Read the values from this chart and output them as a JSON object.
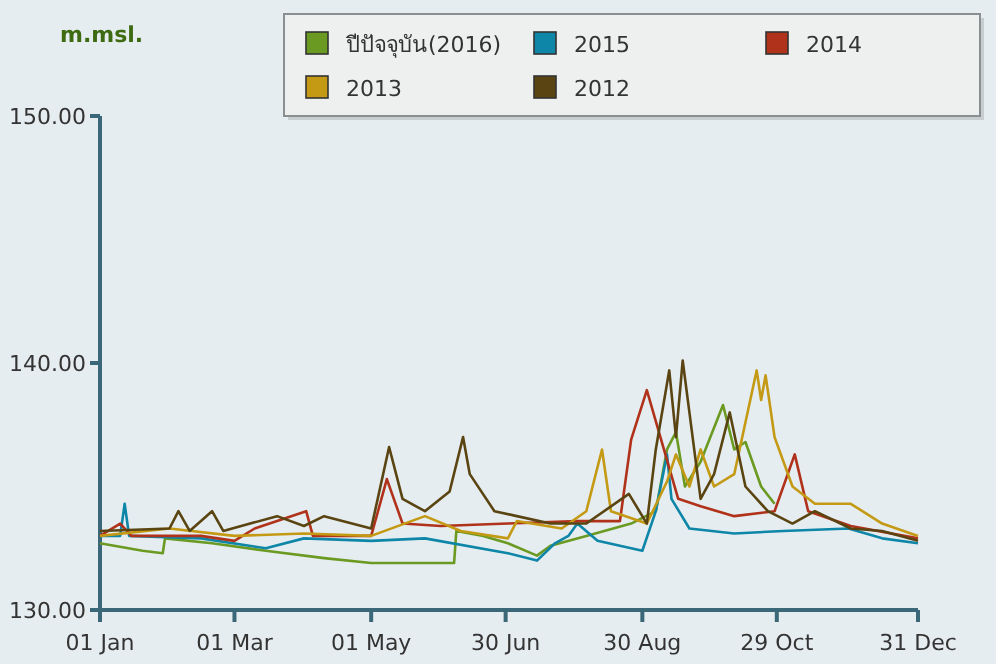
{
  "chart_data": {
    "type": "line",
    "ylabel": "m.msl.",
    "legend": "top right",
    "marker": "none",
    "line_style": "solid",
    "xlim": [
      "--01-01",
      "--12-31"
    ],
    "ylim": [
      130,
      150
    ],
    "xticks": [
      {
        "value": "--01-01",
        "label": "01 Jan"
      },
      {
        "value": "--03-01",
        "label": "01 Mar"
      },
      {
        "value": "--05-01",
        "label": "01 May"
      },
      {
        "value": "--06-30",
        "label": "30 Jun"
      },
      {
        "value": "--08-30",
        "label": "30 Aug"
      },
      {
        "value": "--10-29",
        "label": "29 Oct"
      },
      {
        "value": "--12-31",
        "label": "31 Dec"
      }
    ],
    "yticks": [
      {
        "value": 130,
        "label": "130.00"
      },
      {
        "value": 140,
        "label": "140.00"
      },
      {
        "value": 150,
        "label": "150.00"
      }
    ],
    "series": [
      {
        "name": "ปีปัจจุบัน(2016)",
        "color": "#6b9a22",
        "x": [
          "--01-01",
          "--01-20",
          "--01-29",
          "--01-30",
          "--02-20",
          "--03-15",
          "--04-10",
          "--05-01",
          "--05-20",
          "--06-07",
          "--06-08",
          "--06-20",
          "--07-01",
          "--07-14",
          "--07-20",
          "--08-05",
          "--08-25",
          "--09-05",
          "--09-10",
          "--09-14",
          "--09-18",
          "--09-25",
          "--10-05",
          "--10-10",
          "--10-15",
          "--10-22",
          "--10-28"
        ],
        "values": [
          132.7,
          132.4,
          132.3,
          132.9,
          132.7,
          132.4,
          132.1,
          131.9,
          131.9,
          131.9,
          133.2,
          133.0,
          132.7,
          132.2,
          132.6,
          133.0,
          133.5,
          134.0,
          136.5,
          137.2,
          135.0,
          136.0,
          138.3,
          136.5,
          136.8,
          135.0,
          134.3
        ]
      },
      {
        "name": "2015",
        "color": "#0e86a8",
        "x": [
          "--01-01",
          "--01-10",
          "--01-12",
          "--01-14",
          "--02-15",
          "--03-15",
          "--04-01",
          "--05-01",
          "--05-25",
          "--07-01",
          "--07-14",
          "--07-22",
          "--07-28",
          "--08-01",
          "--08-10",
          "--08-30",
          "--09-05",
          "--09-10",
          "--09-12",
          "--09-20",
          "--10-10",
          "--11-01",
          "--11-30",
          "--12-15",
          "--12-31"
        ],
        "values": [
          133.0,
          133.0,
          134.3,
          133.0,
          132.9,
          132.5,
          132.9,
          132.8,
          132.9,
          132.3,
          132.0,
          132.7,
          133.0,
          133.5,
          132.8,
          132.4,
          134.0,
          136.3,
          134.5,
          133.3,
          133.1,
          133.2,
          133.3,
          132.9,
          132.7
        ]
      },
      {
        "name": "2014",
        "color": "#b0321a",
        "x": [
          "--01-01",
          "--01-10",
          "--01-15",
          "--02-15",
          "--03-01",
          "--03-10",
          "--04-02",
          "--04-05",
          "--05-01",
          "--05-08",
          "--05-15",
          "--06-01",
          "--07-01",
          "--08-01",
          "--08-20",
          "--08-25",
          "--09-01",
          "--09-15",
          "--09-25",
          "--10-10",
          "--10-28",
          "--11-06",
          "--11-12",
          "--12-01",
          "--12-31"
        ],
        "values": [
          133.0,
          133.5,
          133.0,
          133.0,
          132.8,
          133.3,
          134.0,
          133.0,
          133.0,
          135.3,
          133.5,
          133.4,
          133.5,
          133.6,
          133.6,
          136.9,
          138.9,
          134.5,
          134.2,
          133.8,
          134.0,
          136.3,
          134.0,
          133.4,
          132.9
        ]
      },
      {
        "name": "2013",
        "color": "#c49a14",
        "x": [
          "--01-01",
          "--02-01",
          "--03-01",
          "--04-01",
          "--05-01",
          "--05-25",
          "--06-10",
          "--07-01",
          "--07-05",
          "--07-25",
          "--08-05",
          "--08-12",
          "--08-16",
          "--09-01",
          "--09-10",
          "--09-14",
          "--09-20",
          "--09-25",
          "--10-01",
          "--10-10",
          "--10-20",
          "--10-22",
          "--10-24",
          "--10-28",
          "--11-05",
          "--11-15",
          "--12-01",
          "--12-15",
          "--12-31"
        ],
        "values": [
          133.0,
          133.3,
          133.0,
          133.1,
          133.0,
          133.8,
          133.2,
          132.9,
          133.6,
          133.3,
          134.0,
          136.5,
          134.0,
          133.5,
          135.2,
          136.3,
          135.0,
          136.5,
          135.0,
          135.5,
          139.7,
          138.5,
          139.5,
          137.0,
          135.0,
          134.3,
          134.3,
          133.5,
          133.0
        ]
      },
      {
        "name": "2012",
        "color": "#5a4512",
        "x": [
          "--01-01",
          "--02-01",
          "--02-05",
          "--02-10",
          "--02-20",
          "--02-25",
          "--03-20",
          "--04-01",
          "--04-10",
          "--05-01",
          "--05-09",
          "--05-15",
          "--05-25",
          "--06-05",
          "--06-11",
          "--06-14",
          "--06-25",
          "--07-05",
          "--07-20",
          "--08-05",
          "--08-24",
          "--09-01",
          "--09-05",
          "--09-11",
          "--09-14",
          "--09-17",
          "--09-20",
          "--09-25",
          "--10-01",
          "--10-08",
          "--10-15",
          "--10-25",
          "--11-05",
          "--11-15",
          "--12-01",
          "--12-15",
          "--12-31"
        ],
        "values": [
          133.2,
          133.3,
          134.0,
          133.2,
          134.0,
          133.2,
          133.8,
          133.4,
          133.8,
          133.3,
          136.6,
          134.5,
          134.0,
          134.8,
          137.0,
          135.5,
          134.0,
          133.8,
          133.5,
          133.5,
          134.7,
          133.5,
          136.5,
          139.7,
          137.0,
          140.1,
          138.0,
          134.5,
          135.5,
          138.0,
          135.0,
          134.0,
          133.5,
          134.0,
          133.3,
          133.2,
          132.8
        ]
      }
    ]
  }
}
